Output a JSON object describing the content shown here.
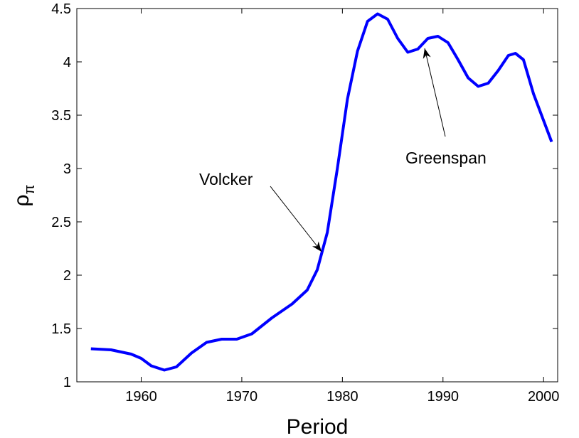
{
  "chart_data": {
    "type": "line",
    "xlabel": "Period",
    "ylabel": {
      "base": "ρ",
      "sub": "π"
    },
    "x": [
      1955,
      1957,
      1959,
      1960,
      1961,
      1962.3,
      1963.5,
      1965,
      1966.5,
      1968,
      1969.5,
      1971,
      1973,
      1975,
      1976.5,
      1977.5,
      1978.5,
      1979.5,
      1980.5,
      1981.5,
      1982.5,
      1983.5,
      1984.5,
      1985.5,
      1986.5,
      1987.5,
      1988.5,
      1989.5,
      1990.5,
      1991.5,
      1992.5,
      1993.5,
      1994.5,
      1995.5,
      1996.5,
      1997.2,
      1998,
      1999,
      2000,
      2000.8
    ],
    "series": [
      {
        "color": "#0000ff",
        "values": [
          1.31,
          1.3,
          1.26,
          1.22,
          1.15,
          1.11,
          1.14,
          1.27,
          1.37,
          1.4,
          1.4,
          1.45,
          1.6,
          1.73,
          1.86,
          2.05,
          2.4,
          3.0,
          3.65,
          4.1,
          4.38,
          4.45,
          4.4,
          4.22,
          4.09,
          4.12,
          4.22,
          4.24,
          4.18,
          4.02,
          3.85,
          3.77,
          3.8,
          3.92,
          4.06,
          4.08,
          4.02,
          3.7,
          3.45,
          3.25
        ]
      }
    ],
    "annotations": [
      "Volcker",
      "Greenspan"
    ],
    "xlim": [
      1953.6,
      2001.4
    ],
    "xticks": [
      1960,
      1970,
      1980,
      1990,
      2000
    ],
    "ylim": [
      1,
      4.5
    ],
    "yticks": [
      1,
      1.5,
      2,
      2.5,
      3,
      3.5,
      4,
      4.5
    ]
  }
}
